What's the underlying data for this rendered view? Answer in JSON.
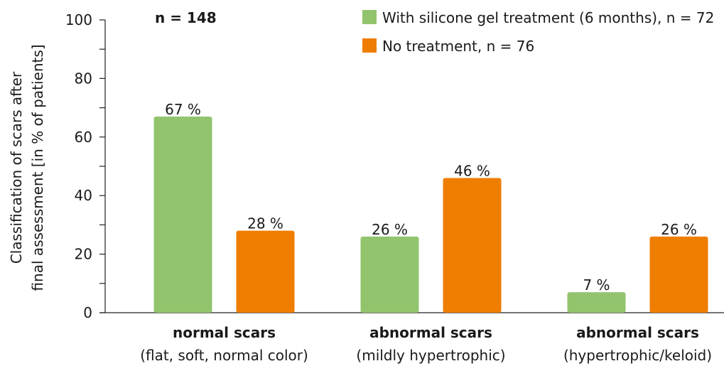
{
  "chart_data": {
    "type": "bar",
    "annotation": "n = 148",
    "ylabel": [
      "Classification of scars after",
      "final assessment [in % of patients]"
    ],
    "categories": [
      "normal scars",
      "abnormal scars",
      "abnormal scars"
    ],
    "category_subtitles": [
      "(flat, soft, normal color)",
      "(mildly hypertrophic)",
      "(hypertrophic/keloid)"
    ],
    "series": [
      {
        "name": "With silicone gel treatment (6 months), n = 72",
        "color": "#92c46d",
        "values": [
          67,
          26,
          7
        ],
        "value_labels": [
          "67 %",
          "26 %",
          "7 %"
        ]
      },
      {
        "name": "No treatment, n = 76",
        "color": "#ef7d00",
        "values": [
          28,
          46,
          26
        ],
        "value_labels": [
          "28 %",
          "46 %",
          "26 %"
        ]
      }
    ],
    "ylim": [
      0,
      100
    ],
    "yticks": [
      0,
      20,
      40,
      60,
      80,
      100
    ],
    "yticks_minor": [
      10,
      30,
      50,
      70,
      90
    ],
    "legend": "top-right"
  }
}
